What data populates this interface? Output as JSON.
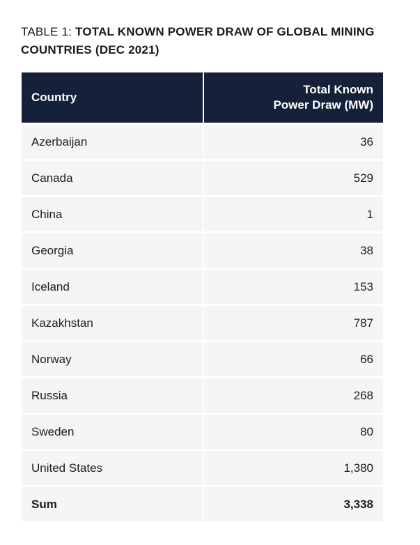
{
  "caption": {
    "lead": "TABLE 1:",
    "rest": "TOTAL KNOWN POWER DRAW OF GLOBAL MINING COUNTRIES (DEC 2021)"
  },
  "table": {
    "headers": {
      "country": "Country",
      "power_line1": "Total Known",
      "power_line2": "Power Draw (MW)"
    },
    "rows": [
      {
        "country": "Azerbaijan",
        "power": "36"
      },
      {
        "country": "Canada",
        "power": "529"
      },
      {
        "country": "China",
        "power": "1"
      },
      {
        "country": "Georgia",
        "power": "38"
      },
      {
        "country": "Iceland",
        "power": "153"
      },
      {
        "country": "Kazakhstan",
        "power": "787"
      },
      {
        "country": "Norway",
        "power": "66"
      },
      {
        "country": "Russia",
        "power": "268"
      },
      {
        "country": "Sweden",
        "power": "80"
      },
      {
        "country": "United States",
        "power": "1,380"
      }
    ],
    "sum": {
      "label": "Sum",
      "value": "3,338"
    }
  },
  "colors": {
    "header_bg": "#152039",
    "row_bg": "#f5f5f6",
    "text": "#1b1d22"
  }
}
